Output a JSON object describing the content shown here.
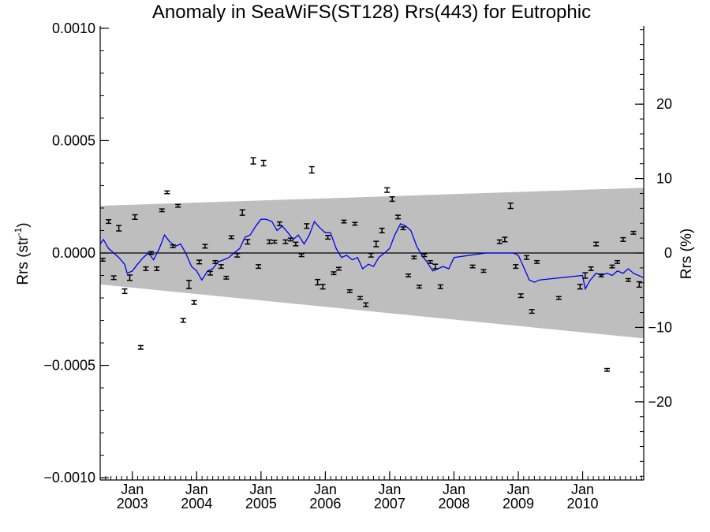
{
  "chart_data": {
    "type": "scatter",
    "title": "Anomaly in SeaWiFS(ST128) Rrs(443) for Eutrophic",
    "ylabel_left": "Rrs (str",
    "ylabel_left_sup": "-1",
    "ylabel_left_close": ")",
    "ylabel_right": "Rrs (%)",
    "xlim": [
      2002.5,
      2010.95
    ],
    "ylim": [
      -0.00101,
      0.00101
    ],
    "ylim_right": [
      -30.5,
      30.5
    ],
    "y_ticks": [
      {
        "value": 0.001,
        "label": "0.0010"
      },
      {
        "value": 0.0005,
        "label": "0.0005"
      },
      {
        "value": 0.0,
        "label": "0.0000"
      },
      {
        "value": -0.0005,
        "label": "−0.0005"
      },
      {
        "value": -0.001,
        "label": "−0.0010"
      }
    ],
    "y_right_ticks": [
      {
        "value": 20,
        "label": "20"
      },
      {
        "value": 10,
        "label": "10"
      },
      {
        "value": 0,
        "label": "0"
      },
      {
        "value": -10,
        "label": "−10"
      },
      {
        "value": -20,
        "label": "−20"
      }
    ],
    "x_ticks": [
      {
        "value": 2003.0,
        "month": "Jan",
        "year": "2003"
      },
      {
        "value": 2004.0,
        "month": "Jan",
        "year": "2004"
      },
      {
        "value": 2005.0,
        "month": "Jan",
        "year": "2005"
      },
      {
        "value": 2006.0,
        "month": "Jan",
        "year": "2006"
      },
      {
        "value": 2007.0,
        "month": "Jan",
        "year": "2007"
      },
      {
        "value": 2008.0,
        "month": "Jan",
        "year": "2008"
      },
      {
        "value": 2009.0,
        "month": "Jan",
        "year": "2009"
      },
      {
        "value": 2010.0,
        "month": "Jan",
        "year": "2010"
      }
    ],
    "grid": false,
    "colors": {
      "band": "#bebebe",
      "line": "#0000ee",
      "points": "#000000",
      "zero": "#000000"
    },
    "band": {
      "x": [
        2002.5,
        2010.95
      ],
      "upper": [
        0.00021,
        0.00029
      ],
      "lower": [
        -0.00014,
        -0.00038
      ]
    },
    "points": [
      {
        "x": 2002.54,
        "y": -3e-05,
        "err": 6e-06
      },
      {
        "x": 2002.63,
        "y": 0.00014,
        "err": 8e-06
      },
      {
        "x": 2002.71,
        "y": -0.00011,
        "err": 8e-06
      },
      {
        "x": 2002.79,
        "y": 0.00011,
        "err": 1.2e-05
      },
      {
        "x": 2002.88,
        "y": -0.00017,
        "err": 1e-05
      },
      {
        "x": 2002.96,
        "y": -0.00011,
        "err": 1.2e-05
      },
      {
        "x": 2003.04,
        "y": 0.00016,
        "err": 1e-05
      },
      {
        "x": 2003.13,
        "y": -0.00042,
        "err": 8e-06
      },
      {
        "x": 2003.21,
        "y": -7e-05,
        "err": 8e-06
      },
      {
        "x": 2003.29,
        "y": 0.0,
        "err": 6e-06
      },
      {
        "x": 2003.38,
        "y": -7e-05,
        "err": 8e-06
      },
      {
        "x": 2003.46,
        "y": 0.00019,
        "err": 6e-06
      },
      {
        "x": 2003.54,
        "y": 0.00027,
        "err": 6e-06
      },
      {
        "x": 2003.63,
        "y": 3e-05,
        "err": 6e-06
      },
      {
        "x": 2003.71,
        "y": 0.00021,
        "err": 6e-06
      },
      {
        "x": 2003.79,
        "y": -0.0003,
        "err": 8e-06
      },
      {
        "x": 2003.88,
        "y": -0.00014,
        "err": 1.8e-05
      },
      {
        "x": 2003.96,
        "y": -0.00022,
        "err": 8e-06
      },
      {
        "x": 2004.04,
        "y": -4e-05,
        "err": 8e-06
      },
      {
        "x": 2004.13,
        "y": 3e-05,
        "err": 8e-06
      },
      {
        "x": 2004.21,
        "y": -9e-05,
        "err": 8e-06
      },
      {
        "x": 2004.29,
        "y": -4e-05,
        "err": 6e-06
      },
      {
        "x": 2004.38,
        "y": -6e-05,
        "err": 8e-06
      },
      {
        "x": 2004.46,
        "y": -0.00011,
        "err": 6e-06
      },
      {
        "x": 2004.54,
        "y": 7e-05,
        "err": 6e-06
      },
      {
        "x": 2004.63,
        "y": -1e-05,
        "err": 8e-06
      },
      {
        "x": 2004.71,
        "y": 0.00018,
        "err": 1.2e-05
      },
      {
        "x": 2004.79,
        "y": 5e-05,
        "err": 1e-05
      },
      {
        "x": 2004.88,
        "y": 0.00041,
        "err": 1.4e-05
      },
      {
        "x": 2004.96,
        "y": -6e-05,
        "err": 8e-06
      },
      {
        "x": 2005.04,
        "y": 0.0004,
        "err": 1.2e-05
      },
      {
        "x": 2005.13,
        "y": 5e-05,
        "err": 8e-06
      },
      {
        "x": 2005.21,
        "y": 5e-05,
        "err": 6e-06
      },
      {
        "x": 2005.29,
        "y": 0.00013,
        "err": 8e-06
      },
      {
        "x": 2005.38,
        "y": 5e-05,
        "err": 8e-06
      },
      {
        "x": 2005.46,
        "y": 6e-05,
        "err": 6e-06
      },
      {
        "x": 2005.54,
        "y": 4e-05,
        "err": 8e-06
      },
      {
        "x": 2005.63,
        "y": -1e-05,
        "err": 6e-06
      },
      {
        "x": 2005.71,
        "y": 0.00012,
        "err": 1e-05
      },
      {
        "x": 2005.79,
        "y": 0.00037,
        "err": 1.4e-05
      },
      {
        "x": 2005.88,
        "y": -0.00013,
        "err": 1.2e-05
      },
      {
        "x": 2005.96,
        "y": -0.00015,
        "err": 1e-05
      },
      {
        "x": 2006.04,
        "y": 7e-05,
        "err": 8e-06
      },
      {
        "x": 2006.13,
        "y": -9e-05,
        "err": 6e-06
      },
      {
        "x": 2006.21,
        "y": -7e-05,
        "err": 6e-06
      },
      {
        "x": 2006.29,
        "y": 0.00014,
        "err": 6e-06
      },
      {
        "x": 2006.38,
        "y": -0.00017,
        "err": 6e-06
      },
      {
        "x": 2006.46,
        "y": 0.00013,
        "err": 6e-06
      },
      {
        "x": 2006.54,
        "y": -0.0002,
        "err": 6e-06
      },
      {
        "x": 2006.63,
        "y": -0.00023,
        "err": 8e-06
      },
      {
        "x": 2006.71,
        "y": -1e-05,
        "err": 8e-06
      },
      {
        "x": 2006.79,
        "y": 4e-05,
        "err": 1.2e-05
      },
      {
        "x": 2006.88,
        "y": 0.0001,
        "err": 1e-05
      },
      {
        "x": 2006.96,
        "y": 0.00028,
        "err": 1e-05
      },
      {
        "x": 2007.04,
        "y": 0.00024,
        "err": 1e-05
      },
      {
        "x": 2007.13,
        "y": 0.00016,
        "err": 8e-06
      },
      {
        "x": 2007.21,
        "y": 0.00011,
        "err": 6e-06
      },
      {
        "x": 2007.29,
        "y": -0.0001,
        "err": 6e-06
      },
      {
        "x": 2007.38,
        "y": -2e-05,
        "err": 6e-06
      },
      {
        "x": 2007.46,
        "y": -0.00015,
        "err": 6e-06
      },
      {
        "x": 2007.54,
        "y": -1e-05,
        "err": 6e-06
      },
      {
        "x": 2007.63,
        "y": -4e-05,
        "err": 6e-06
      },
      {
        "x": 2007.71,
        "y": -6e-05,
        "err": 1e-05
      },
      {
        "x": 2007.79,
        "y": -0.00015,
        "err": 8e-06
      },
      {
        "x": 2008.29,
        "y": -6e-05,
        "err": 6e-06
      },
      {
        "x": 2008.46,
        "y": -8e-05,
        "err": 6e-06
      },
      {
        "x": 2008.71,
        "y": 5e-05,
        "err": 8e-06
      },
      {
        "x": 2008.79,
        "y": 6e-05,
        "err": 1e-05
      },
      {
        "x": 2008.88,
        "y": 0.00021,
        "err": 1.2e-05
      },
      {
        "x": 2008.96,
        "y": -6e-05,
        "err": 8e-06
      },
      {
        "x": 2009.04,
        "y": -0.00019,
        "err": 8e-06
      },
      {
        "x": 2009.13,
        "y": -2e-05,
        "err": 8e-06
      },
      {
        "x": 2009.21,
        "y": -0.00026,
        "err": 8e-06
      },
      {
        "x": 2009.29,
        "y": -4e-05,
        "err": 6e-06
      },
      {
        "x": 2009.63,
        "y": -0.0002,
        "err": 6e-06
      },
      {
        "x": 2009.96,
        "y": -0.00015,
        "err": 1e-05
      },
      {
        "x": 2010.04,
        "y": -0.0001,
        "err": 1.2e-05
      },
      {
        "x": 2010.13,
        "y": -7e-05,
        "err": 8e-06
      },
      {
        "x": 2010.21,
        "y": 4e-05,
        "err": 8e-06
      },
      {
        "x": 2010.29,
        "y": -0.0001,
        "err": 6e-06
      },
      {
        "x": 2010.38,
        "y": -0.00052,
        "err": 6e-06
      },
      {
        "x": 2010.46,
        "y": -6e-05,
        "err": 6e-06
      },
      {
        "x": 2010.54,
        "y": -4e-05,
        "err": 6e-06
      },
      {
        "x": 2010.63,
        "y": 6e-05,
        "err": 8e-06
      },
      {
        "x": 2010.71,
        "y": -0.00012,
        "err": 6e-06
      },
      {
        "x": 2010.79,
        "y": 9e-05,
        "err": 6e-06
      },
      {
        "x": 2010.88,
        "y": -0.00014,
        "err": 1.2e-05
      }
    ],
    "series": [
      {
        "x": [
          2002.5,
          2002.55,
          2002.63,
          2002.71,
          2002.79,
          2002.88,
          2002.92,
          2003.0,
          2003.08,
          2003.17,
          2003.25,
          2003.33,
          2003.42,
          2003.5,
          2003.58,
          2003.67,
          2003.75,
          2003.83,
          2003.92,
          2004.0,
          2004.08,
          2004.17,
          2004.25,
          2004.33,
          2004.42,
          2004.5,
          2004.58,
          2004.67,
          2004.75,
          2004.83,
          2004.92,
          2005.0,
          2005.08,
          2005.17,
          2005.25,
          2005.33,
          2005.42,
          2005.5,
          2005.58,
          2005.67,
          2005.75,
          2005.83,
          2005.92,
          2006.0,
          2006.08,
          2006.17,
          2006.25,
          2006.33,
          2006.42,
          2006.5,
          2006.58,
          2006.67,
          2006.75,
          2006.83,
          2006.92,
          2007.0,
          2007.08,
          2007.17,
          2007.25,
          2007.33,
          2007.42,
          2007.5,
          2007.58,
          2007.67,
          2007.75,
          2007.83,
          2007.92,
          2008.0,
          2008.25,
          2008.5,
          2008.58,
          2008.75,
          2008.92,
          2009.0,
          2009.08,
          2009.17,
          2009.25,
          2009.33,
          2010.0,
          2010.04,
          2010.12,
          2010.21,
          2010.29,
          2010.38,
          2010.46,
          2010.54,
          2010.63,
          2010.71,
          2010.79,
          2010.95
        ],
        "y": [
          4e-05,
          6e-05,
          2e-05,
          0.0,
          -2e-05,
          -5e-05,
          -9e-05,
          -8e-05,
          -5e-05,
          -2e-05,
          0.0,
          -3e-05,
          2e-05,
          8e-05,
          5e-05,
          3e-05,
          4e-05,
          0.0,
          -6e-05,
          -8e-05,
          -0.00012,
          -8e-05,
          -7e-05,
          -4e-05,
          -3e-05,
          -2e-05,
          0.0,
          2e-05,
          7e-05,
          8e-05,
          0.00012,
          0.00015,
          0.00015,
          0.00014,
          0.0001,
          0.00012,
          9e-05,
          6e-05,
          8e-05,
          4e-05,
          8e-05,
          0.00014,
          0.00011,
          9e-05,
          9e-05,
          2e-05,
          -2e-05,
          -1e-05,
          -3e-05,
          -2e-05,
          -7e-05,
          -5e-05,
          -6e-05,
          -2e-05,
          0.0,
          2e-05,
          8e-05,
          0.00013,
          0.00012,
          0.0001,
          3e-05,
          -1e-05,
          -4e-05,
          -8e-05,
          -7e-05,
          -6e-05,
          -7e-05,
          -2e-05,
          -1e-05,
          0.0,
          0.0,
          0.0,
          0.0,
          -1e-05,
          -6e-05,
          -0.00012,
          -0.00013,
          -0.00012,
          -0.0001,
          -0.00016,
          -0.00012,
          -9e-05,
          -0.0001,
          -9e-05,
          -0.0001,
          -8e-05,
          -9e-05,
          -7e-05,
          -9e-05,
          -0.00011
        ]
      }
    ]
  }
}
